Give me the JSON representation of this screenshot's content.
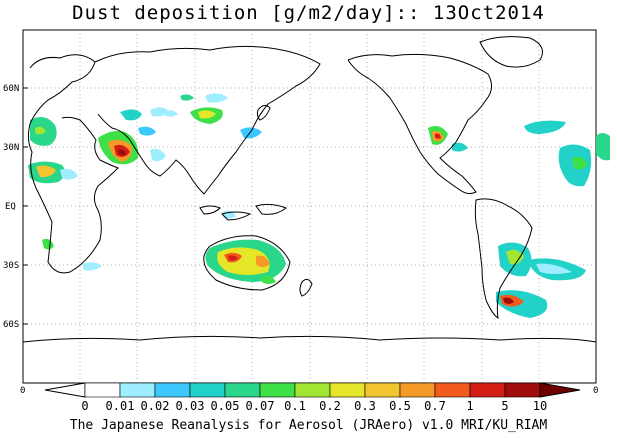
{
  "map": {
    "title": "Dust deposition [g/m2/day]:: 13Oct2014",
    "footer": "The Japanese Reanalysis for Aerosol (JRAero) v1.0 MRI/KU_RIAM",
    "lat_labels": [
      "60N",
      "30N",
      "EQ",
      "30S",
      "60S"
    ],
    "lon_edge_labels": [
      "0",
      "0"
    ]
  },
  "colorbar": {
    "labels": [
      "0",
      "0.01",
      "0.02",
      "0.03",
      "0.05",
      "0.07",
      "0.1",
      "0.2",
      "0.3",
      "0.5",
      "0.7",
      "1",
      "5",
      "10"
    ],
    "colors": [
      "#ffffff",
      "#9eeeff",
      "#3cc8ff",
      "#22d2c8",
      "#2ad68a",
      "#3ee048",
      "#a0e632",
      "#e6e628",
      "#f2c430",
      "#f59a28",
      "#f25a1e",
      "#d21e14",
      "#a00c0c",
      "#6e0000"
    ]
  }
}
